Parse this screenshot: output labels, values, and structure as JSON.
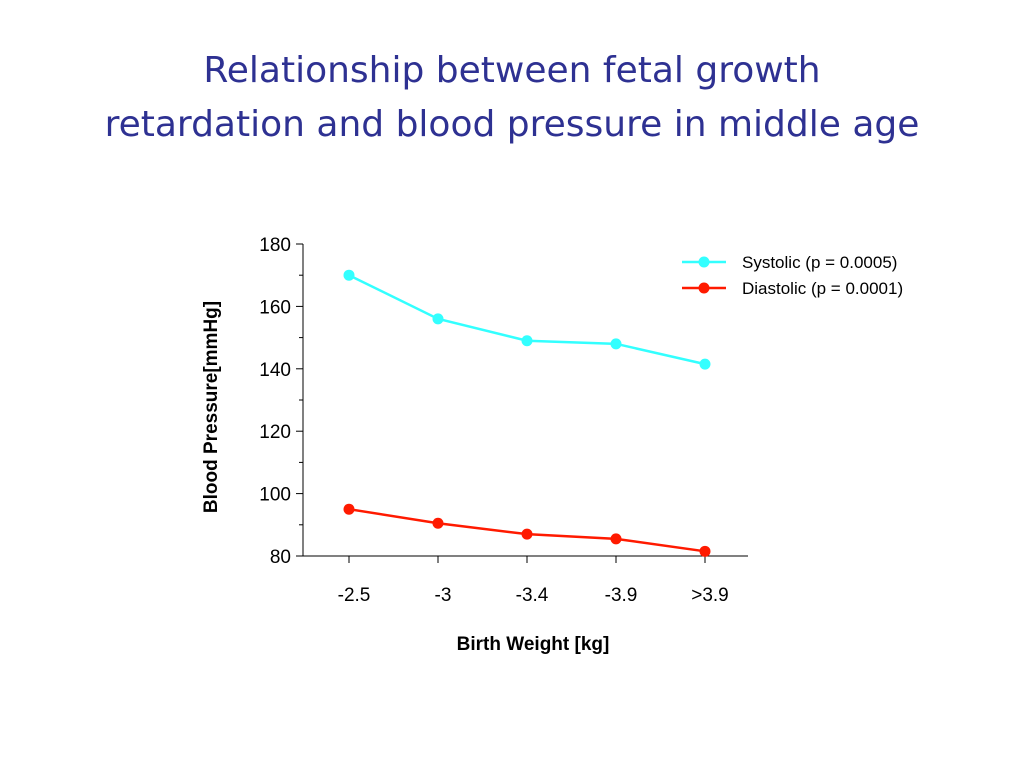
{
  "slide": {
    "title_line1": "Relationship between fetal growth",
    "title_line2": "retardation and blood pressure in middle age"
  },
  "chart_data": {
    "type": "line",
    "xlabel": "Birth Weight [kg]",
    "ylabel": "Blood Pressure[mmHg]",
    "categories": [
      "-2.5",
      "-3",
      "-3.4",
      "-3.9",
      ">3.9"
    ],
    "ylim": [
      80,
      180
    ],
    "yticks": [
      80,
      100,
      120,
      140,
      160,
      180
    ],
    "grid": false,
    "legend_position": "top-right",
    "series": [
      {
        "name": "Systolic (p = 0.0005)",
        "color": "#33ffff",
        "values": [
          170,
          156,
          149,
          148,
          141.5
        ]
      },
      {
        "name": "Diastolic (p = 0.0001)",
        "color": "#ff1a00",
        "values": [
          95,
          90.5,
          87,
          85.5,
          81.5
        ]
      }
    ]
  }
}
